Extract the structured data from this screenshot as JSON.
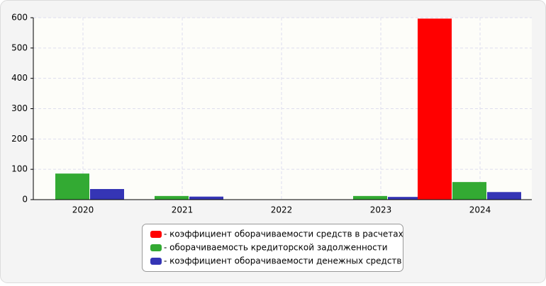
{
  "chart_data": {
    "type": "bar",
    "categories": [
      "2020",
      "2021",
      "2022",
      "2023",
      "2024"
    ],
    "series": [
      {
        "name": "- коэффициент оборачиваемости средств в расчетах",
        "color": "#ff0000",
        "values": [
          0,
          0,
          0,
          0,
          597
        ]
      },
      {
        "name": "- оборачиваемость кредиторской задолженности",
        "color": "#33aa33",
        "values": [
          86,
          12,
          0,
          12,
          58
        ]
      },
      {
        "name": "- коэффициент оборачиваемости денежных средств",
        "color": "#3535b5",
        "values": [
          35,
          10,
          0,
          9,
          25
        ]
      }
    ],
    "ylim": [
      0,
      600
    ],
    "yticks": [
      0,
      100,
      200,
      300,
      400,
      500,
      600
    ],
    "grid": true,
    "legend": "bottom"
  }
}
